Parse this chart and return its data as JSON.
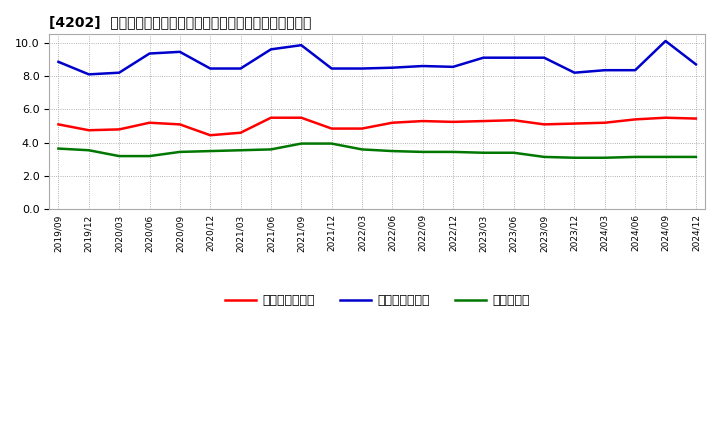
{
  "title": "[4202]  売上債権回転率、買入債務回転率、在庫回転率の推移",
  "x_labels": [
    "2019/09",
    "2019/12",
    "2020/03",
    "2020/06",
    "2020/09",
    "2020/12",
    "2021/03",
    "2021/06",
    "2021/09",
    "2021/12",
    "2022/03",
    "2022/06",
    "2022/09",
    "2022/12",
    "2023/03",
    "2023/06",
    "2023/09",
    "2023/12",
    "2024/03",
    "2024/06",
    "2024/09",
    "2024/12"
  ],
  "売上債権回転率": [
    5.1,
    4.75,
    4.8,
    5.2,
    5.1,
    4.45,
    4.6,
    5.5,
    5.5,
    4.85,
    4.85,
    5.2,
    5.3,
    5.25,
    5.3,
    5.35,
    5.1,
    5.15,
    5.2,
    5.4,
    5.5,
    5.45
  ],
  "買入債務回転率": [
    8.85,
    8.1,
    8.2,
    9.35,
    9.45,
    8.45,
    8.45,
    9.6,
    9.85,
    8.45,
    8.45,
    8.5,
    8.6,
    8.55,
    9.1,
    9.1,
    9.1,
    8.2,
    8.35,
    8.35,
    10.1,
    8.7
  ],
  "在庫回転率": [
    3.65,
    3.55,
    3.2,
    3.2,
    3.45,
    3.5,
    3.55,
    3.6,
    3.95,
    3.95,
    3.6,
    3.5,
    3.45,
    3.45,
    3.4,
    3.4,
    3.15,
    3.1,
    3.1,
    3.15,
    3.15,
    3.15
  ],
  "line_colors": {
    "売上債権回転率": "#ff0000",
    "買入債務回転率": "#0000cc",
    "在庫回転率": "#007700"
  },
  "ylim": [
    0.0,
    10.5
  ],
  "yticks": [
    0.0,
    2.0,
    4.0,
    6.0,
    8.0,
    10.0
  ],
  "background_color": "#ffffff",
  "grid_color": "#aaaaaa",
  "legend_labels": [
    "売上債権回転率",
    "買入債務回転率",
    "在庫回転率"
  ]
}
